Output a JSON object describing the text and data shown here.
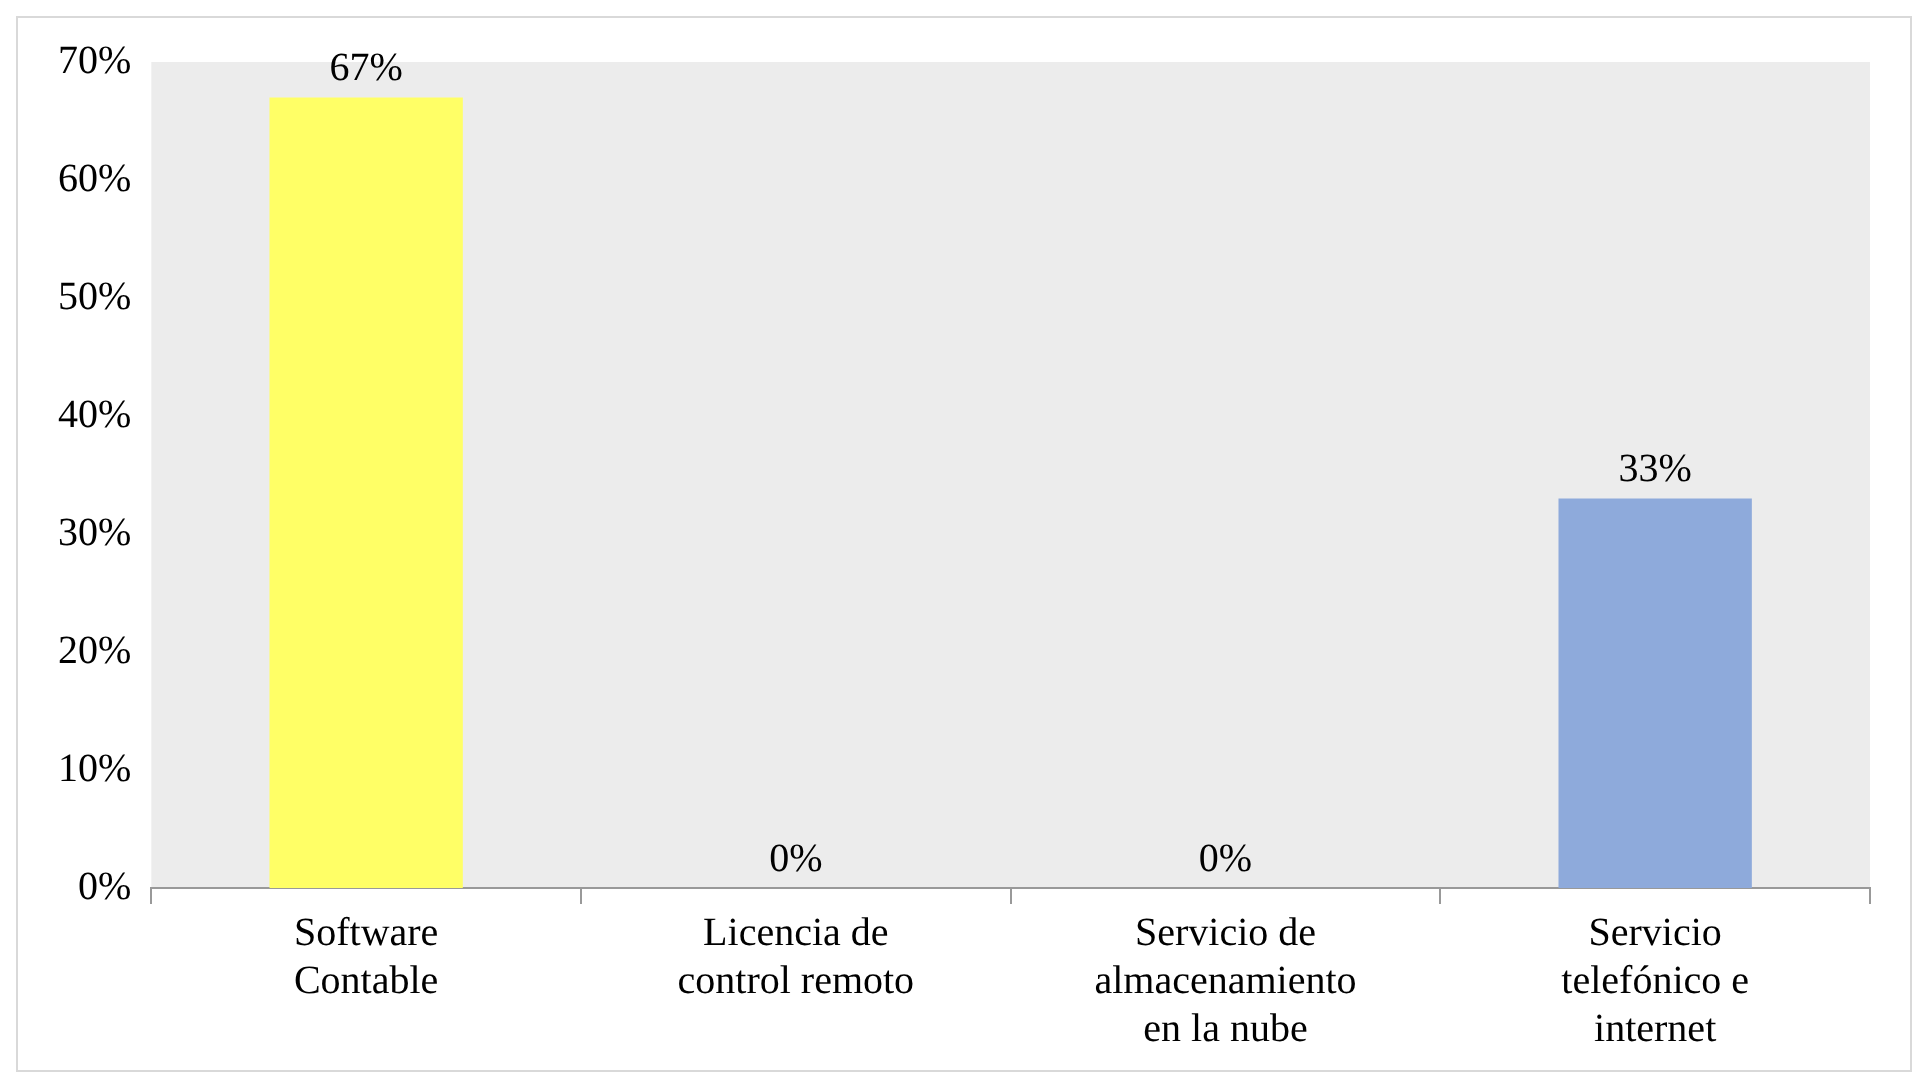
{
  "chart_data": {
    "type": "bar",
    "categories": [
      "Software Contable",
      "Licencia de control remoto",
      "Servicio de almacenamiento en la nube",
      "Servicio telefónico e internet"
    ],
    "values": [
      67,
      0,
      0,
      33
    ],
    "colors": [
      "#ffff66",
      "#ffff66",
      "#8eaadb",
      "#8eaadb"
    ],
    "ylim": [
      0,
      70
    ],
    "yticks": [
      {
        "value": 0,
        "label": "0%"
      },
      {
        "value": 10,
        "label": "10%"
      },
      {
        "value": 20,
        "label": "20%"
      },
      {
        "value": 30,
        "label": "30%"
      },
      {
        "value": 40,
        "label": "40%"
      },
      {
        "value": 50,
        "label": "50%"
      },
      {
        "value": 60,
        "label": "60%"
      },
      {
        "value": 70,
        "label": "70%"
      }
    ],
    "value_labels": [
      "67%",
      "0%",
      "0%",
      "33%"
    ],
    "grid": false,
    "legend": false
  }
}
